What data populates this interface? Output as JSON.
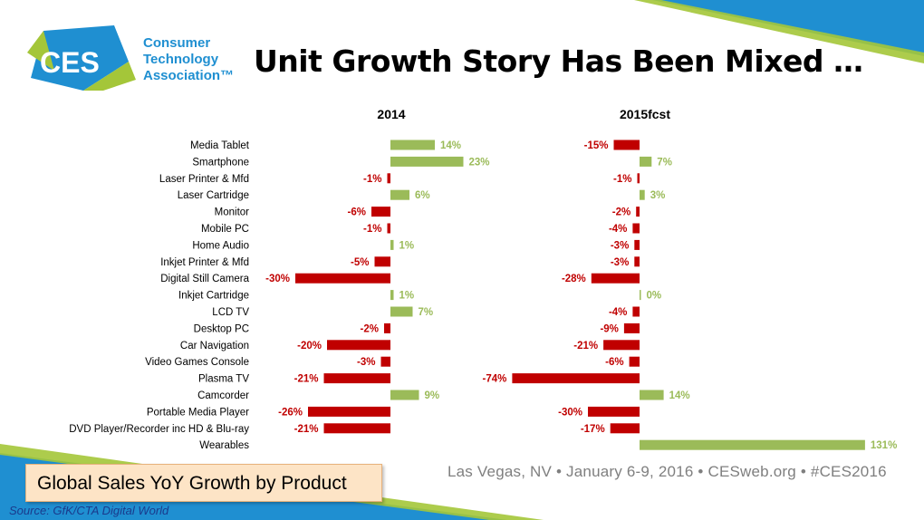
{
  "header": {
    "title": "Unit Growth Story Has Been Mixed …",
    "logo": {
      "mark": "CES",
      "line1": "Consumer",
      "line2": "Technology",
      "line3": "Association™"
    }
  },
  "colors": {
    "positive": "#9bbb59",
    "negative": "#c00000",
    "brand_blue": "#1f8fd1",
    "brand_green": "#a4c639"
  },
  "caption": "Global Sales YoY Growth by Product",
  "source": "Source: GfK/CTA Digital World",
  "footer": "Las Vegas, NV  •  January 6-9, 2016  •  CESweb.org  •  #CES2016",
  "chart_data": {
    "type": "bar",
    "orientation": "horizontal",
    "categories": [
      "Media Tablet",
      "Smartphone",
      "Laser Printer & Mfd",
      "Laser Cartridge",
      "Monitor",
      "Mobile PC",
      "Home Audio",
      "Inkjet Printer & Mfd",
      "Digital Still Camera",
      "Inkjet Cartridge",
      "LCD TV",
      "Desktop PC",
      "Car Navigation",
      "Video Games Console",
      "Plasma TV",
      "Camcorder",
      "Portable Media Player",
      "DVD Player/Recorder inc HD & Blu-ray",
      "Wearables"
    ],
    "series": [
      {
        "name": "2014",
        "values": [
          14,
          23,
          -1,
          6,
          -6,
          -1,
          1,
          -5,
          -30,
          1,
          7,
          -2,
          -20,
          -3,
          -21,
          9,
          -26,
          -21,
          null
        ],
        "labels": [
          "14%",
          "23%",
          "-1%",
          "6%",
          "-6%",
          "-1%",
          "1%",
          "-5%",
          "-30%",
          "1%",
          "7%",
          "-2%",
          "-20%",
          "-3%",
          "-21%",
          "9%",
          "-26%",
          "-21%",
          ""
        ]
      },
      {
        "name": "2015fcst",
        "values": [
          -15,
          7,
          -1,
          3,
          -2,
          -4,
          -3,
          -3,
          -28,
          0,
          -4,
          -9,
          -21,
          -6,
          -74,
          14,
          -30,
          -17,
          131
        ],
        "labels": [
          "-15%",
          "7%",
          "-1%",
          "3%",
          "-2%",
          "-4%",
          "-3%",
          "-3%",
          "-28%",
          "0%",
          "-4%",
          "-9%",
          "-21%",
          "-6%",
          "-74%",
          "14%",
          "-30%",
          "-17%",
          "131%"
        ]
      }
    ],
    "legend": "none",
    "grid": false
  }
}
